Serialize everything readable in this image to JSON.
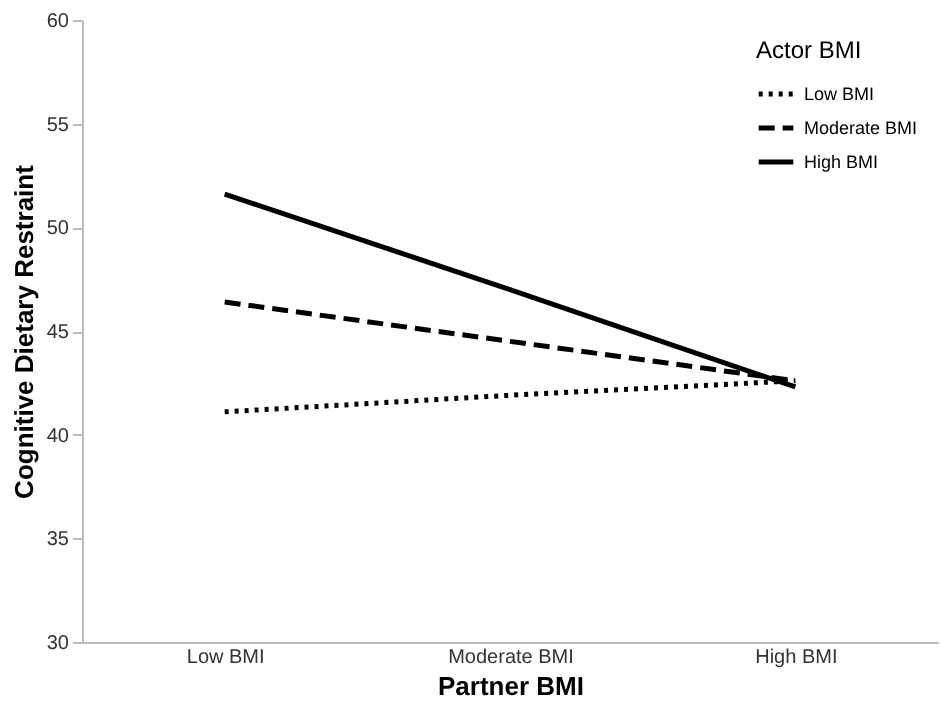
{
  "chart_data": {
    "type": "line",
    "xlabel": "Partner BMI",
    "ylabel": "Cognitive Dietary Restraint",
    "legend_title": "Actor BMI",
    "legend": "top right",
    "grid": false,
    "marker": "none",
    "categories": [
      "Low BMI",
      "Moderate BMI",
      "High BMI"
    ],
    "ylim": [
      30,
      60
    ],
    "yticks": [
      30,
      35,
      40,
      45,
      50,
      55,
      60
    ],
    "series": [
      {
        "name": "Low BMI",
        "color": "#000000",
        "line_style": "dotted",
        "values": [
          41.1,
          41.9,
          42.6
        ]
      },
      {
        "name": "Moderate BMI",
        "color": "#000000",
        "line_style": "dashed",
        "values": [
          46.4,
          44.5,
          42.6
        ]
      },
      {
        "name": "High BMI",
        "color": "#000000",
        "line_style": "solid",
        "values": [
          51.6,
          47.0,
          42.3
        ]
      }
    ]
  }
}
